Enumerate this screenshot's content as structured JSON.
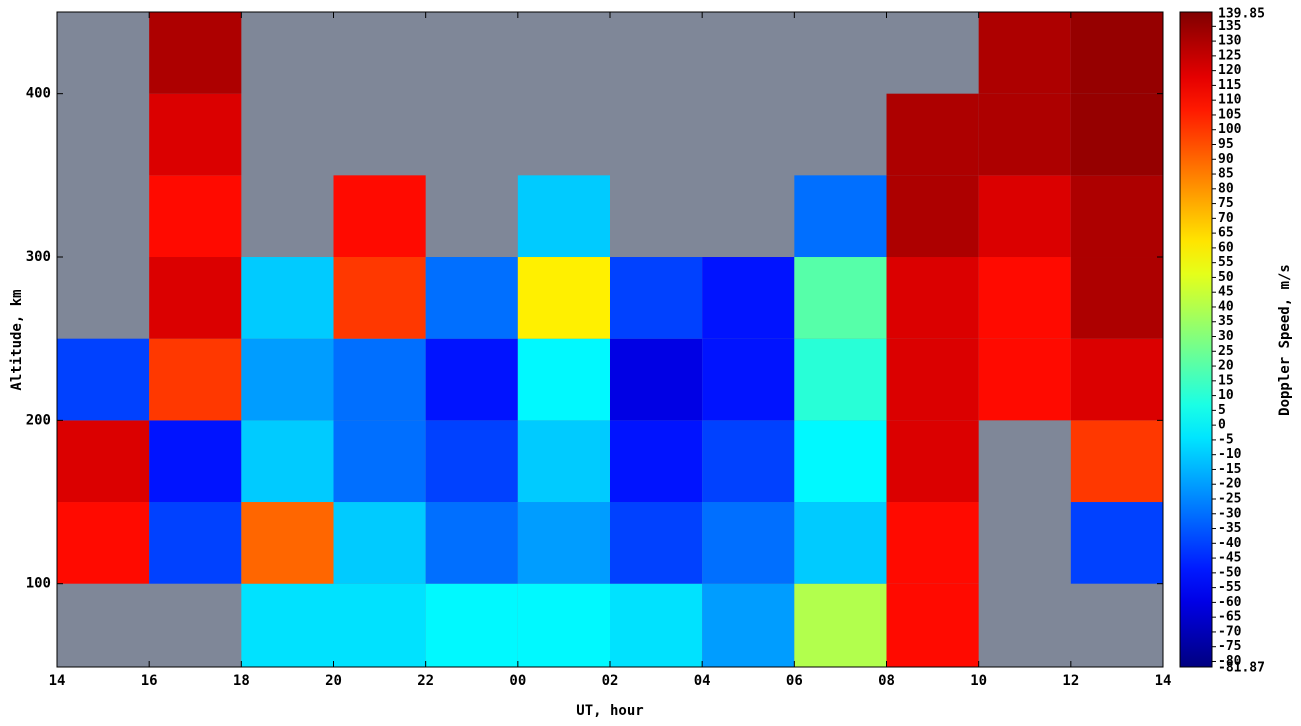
{
  "chart_data": {
    "type": "heatmap",
    "xlabel": "UT, hour",
    "ylabel": "Altitude, km",
    "xlim": [
      14,
      38
    ],
    "ylim": [
      49,
      450
    ],
    "xticks": [
      14,
      16,
      18,
      20,
      22,
      {
        "value": 24,
        "label": "00"
      },
      {
        "value": 26,
        "label": "02"
      },
      {
        "value": 28,
        "label": "04"
      },
      {
        "value": 30,
        "label": "06"
      },
      {
        "value": 32,
        "label": "08"
      },
      {
        "value": 34,
        "label": "10"
      },
      {
        "value": 36,
        "label": "12"
      },
      {
        "value": 38,
        "label": "14"
      }
    ],
    "yticks": [
      100,
      200,
      300,
      400
    ],
    "x_edges": [
      14,
      16,
      18,
      20,
      22,
      24,
      26,
      28,
      30,
      32,
      34,
      36,
      38
    ],
    "y_edges": [
      49,
      100,
      150,
      200,
      250,
      300,
      350,
      400,
      450
    ],
    "z": [
      [
        null,
        null,
        -5,
        -5,
        0,
        0,
        -5,
        -20,
        40,
        110,
        null,
        null
      ],
      [
        110,
        -40,
        90,
        -10,
        -30,
        -20,
        -40,
        -30,
        -10,
        110,
        null,
        -40
      ],
      [
        120,
        -50,
        -10,
        -30,
        -40,
        -10,
        -50,
        -40,
        0,
        120,
        null,
        100
      ],
      [
        -40,
        100,
        -20,
        -30,
        -50,
        0,
        -60,
        -50,
        10,
        120,
        110,
        120
      ],
      [
        null,
        120,
        -10,
        100,
        -30,
        60,
        -40,
        -50,
        20,
        120,
        110,
        130
      ],
      [
        null,
        110,
        null,
        110,
        null,
        -10,
        null,
        null,
        -30,
        130,
        120,
        130
      ],
      [
        null,
        120,
        null,
        null,
        null,
        null,
        null,
        null,
        null,
        130,
        130,
        135
      ],
      [
        null,
        130,
        null,
        null,
        null,
        null,
        null,
        null,
        null,
        null,
        130,
        135
      ]
    ],
    "background": "#7f8798",
    "colorbar": {
      "label": "Doppler Speed, m/s",
      "colormap": "jet",
      "lim": [
        -81.87,
        139.85
      ],
      "ticks": [
        -80,
        -75,
        -70,
        -65,
        -60,
        -55,
        -50,
        -45,
        -40,
        -35,
        -30,
        -25,
        -20,
        -15,
        -10,
        -5,
        0,
        5,
        10,
        15,
        20,
        25,
        30,
        35,
        40,
        45,
        50,
        55,
        60,
        65,
        70,
        75,
        80,
        85,
        90,
        95,
        100,
        105,
        110,
        115,
        120,
        125,
        130,
        135
      ]
    }
  }
}
